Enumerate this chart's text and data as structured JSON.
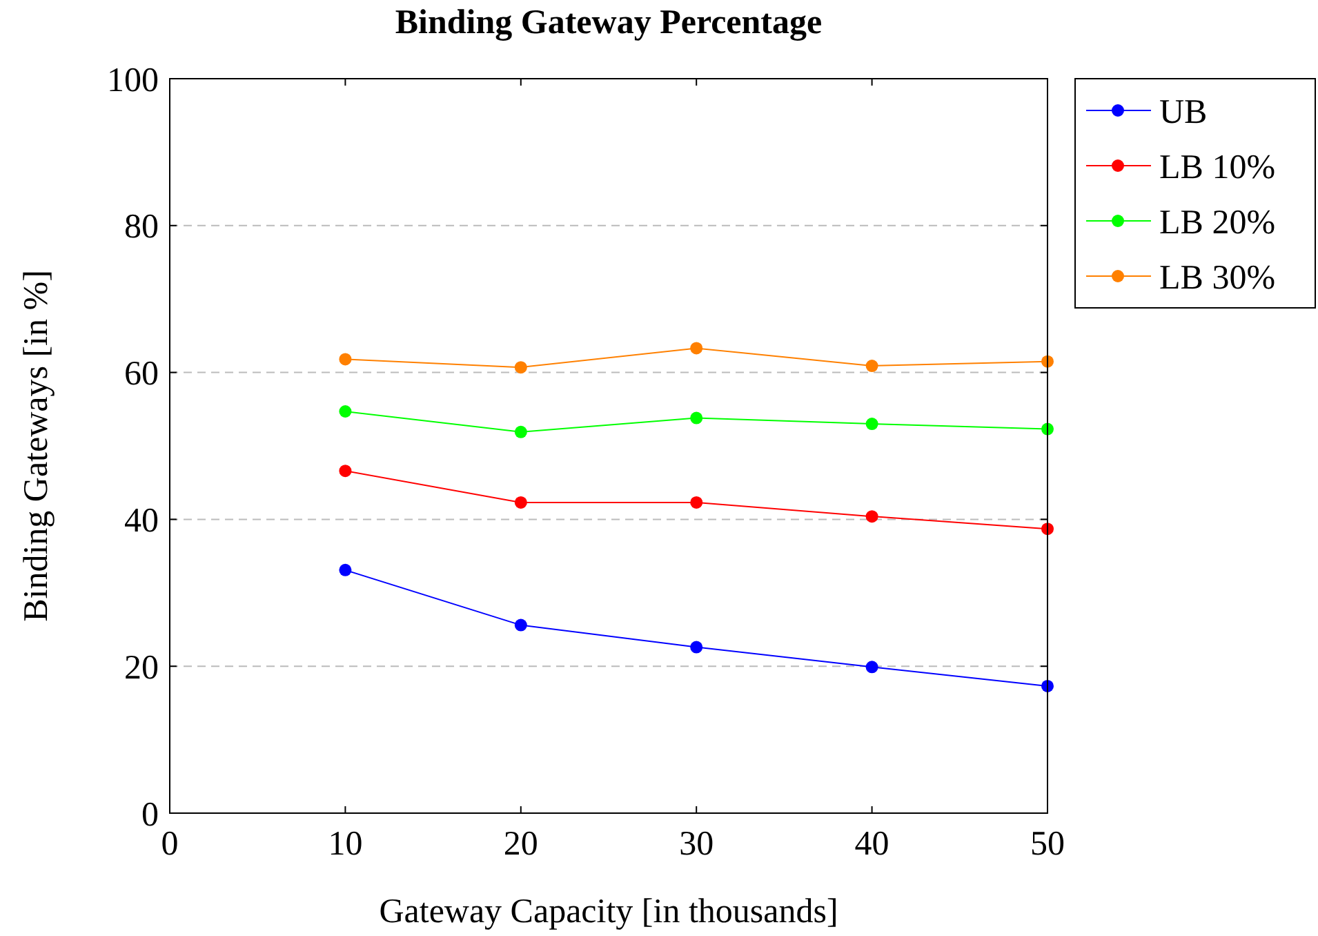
{
  "chart_data": {
    "type": "line",
    "title": "Binding Gateway Percentage",
    "xlabel": "Gateway Capacity [in thousands]",
    "ylabel": "Binding Gateways [in %]",
    "x": [
      10,
      20,
      30,
      40,
      50
    ],
    "xlim": [
      0,
      50
    ],
    "xticks": [
      0,
      10,
      20,
      30,
      40,
      50
    ],
    "ylim": [
      0,
      100
    ],
    "yticks": [
      0,
      20,
      40,
      60,
      80,
      100
    ],
    "grid": "y",
    "legend": "top right",
    "marker": "circle",
    "line_style": "solid",
    "series": [
      {
        "name": "UB",
        "color": "#0000ff",
        "values": [
          33.1,
          25.6,
          22.6,
          19.9,
          17.3
        ]
      },
      {
        "name": "LB 10%",
        "color": "#ff0000",
        "values": [
          46.6,
          42.3,
          42.3,
          40.4,
          38.7
        ]
      },
      {
        "name": "LB 20%",
        "color": "#00ff00",
        "values": [
          54.7,
          51.9,
          53.8,
          53.0,
          52.3
        ]
      },
      {
        "name": "LB 30%",
        "color": "#ff8000",
        "values": [
          61.8,
          60.7,
          63.3,
          60.9,
          61.5
        ]
      }
    ]
  }
}
